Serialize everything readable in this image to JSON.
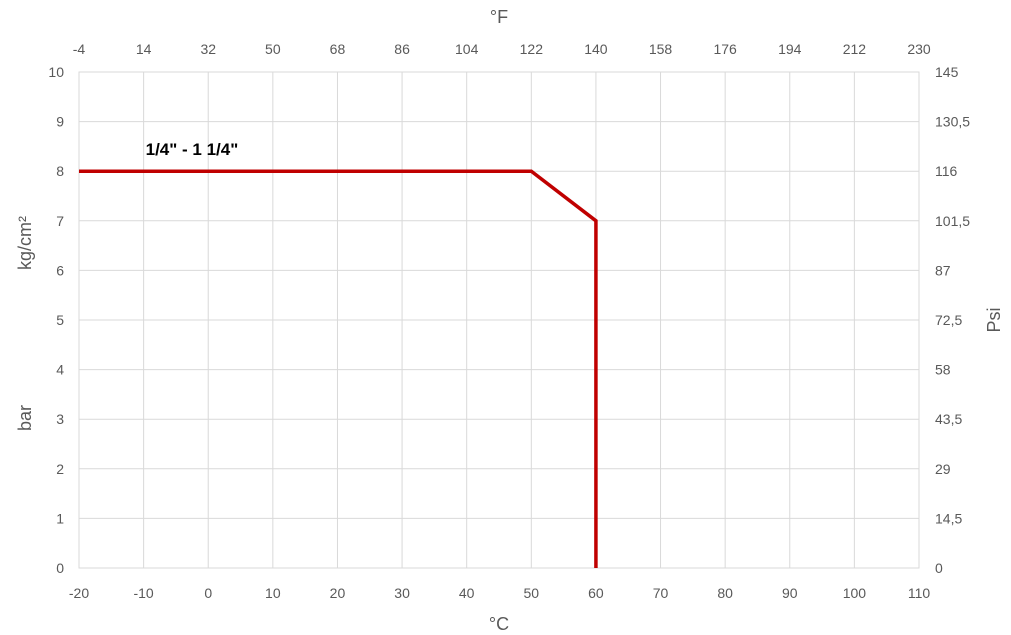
{
  "chart_data": {
    "type": "line",
    "x_axis_bottom": {
      "label": "°C",
      "range": [
        -20,
        110
      ],
      "ticks": [
        "-20",
        "-10",
        "0",
        "10",
        "20",
        "30",
        "40",
        "50",
        "60",
        "70",
        "80",
        "90",
        "100",
        "110"
      ]
    },
    "x_axis_top": {
      "label": "°F",
      "ticks": [
        "-4",
        "14",
        "32",
        "50",
        "68",
        "86",
        "104",
        "122",
        "140",
        "158",
        "176",
        "194",
        "212",
        "230"
      ]
    },
    "y_axis_left": {
      "label_upper": "kg/cm²",
      "label_lower": "bar",
      "range": [
        0,
        10
      ],
      "ticks": [
        "0",
        "1",
        "2",
        "3",
        "4",
        "5",
        "6",
        "7",
        "8",
        "9",
        "10"
      ]
    },
    "y_axis_right": {
      "label": "Psi",
      "ticks": [
        "0",
        "14,5",
        "29",
        "43,5",
        "58",
        "72,5",
        "87",
        "101,5",
        "116",
        "130,5",
        "145"
      ]
    },
    "grid": true,
    "series": [
      {
        "name": "1/4\" - 1 1/4\"",
        "color": "#c00000",
        "points": [
          [
            -20,
            8
          ],
          [
            50,
            8
          ],
          [
            60,
            7
          ],
          [
            60,
            0
          ]
        ]
      }
    ],
    "annotations": [
      {
        "text": "1/4\" - 1 1/4\"",
        "x": -10,
        "y": 8
      }
    ]
  }
}
